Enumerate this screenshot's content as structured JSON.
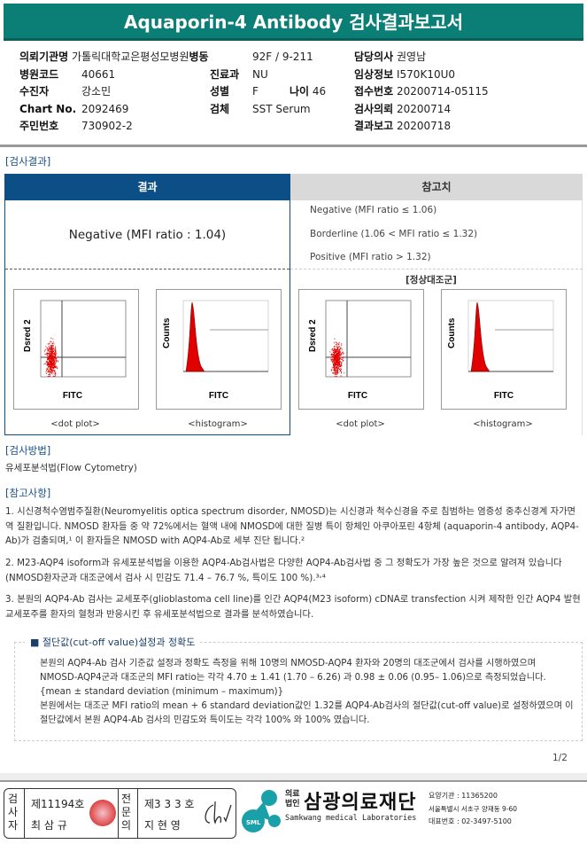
{
  "title": "Aquaporin-4 Antibody 검사결과보고서",
  "info": {
    "institution_label": "의뢰기관명",
    "institution": "가톨릭대학교은평성모병원",
    "ward_label": "병동",
    "ward": "92F / 9-211",
    "doctor_label": "담당의사",
    "doctor": "권영남",
    "code_label": "병원코드",
    "code": "40661",
    "dept_label": "진료과",
    "dept": "NU",
    "clinical_label": "임상정보",
    "clinical": "I570K10U0",
    "patient_label": "수진자",
    "patient": "강소민",
    "sex_label": "성별",
    "sex": "F",
    "age_label": "나이",
    "age": "46",
    "receipt_label": "접수번호",
    "receipt": "20200714-05115",
    "chart_label": "Chart No.",
    "chart": "2092469",
    "specimen_label": "검체",
    "specimen": "SST Serum",
    "request_label": "검사의뢰",
    "request": "20200714",
    "id_label": "주민번호",
    "id": "730902-2",
    "report_label": "결과보고",
    "report": "20200718"
  },
  "results": {
    "section": "[검사결과]",
    "result_header": "결과",
    "ref_header": "참고치",
    "result": "Negative (MFI ratio : 1.04)",
    "refs": [
      "Negative (MFI ratio ≤ 1.06)",
      "Borderline (1.06 < MFI ratio ≤ 1.32)",
      "Positive (MFI ratio > 1.32)"
    ],
    "control_label": "[정상대조군]",
    "dot_caption": "<dot plot>",
    "hist_caption": "<histogram>",
    "dot_ylabel": "Dsred 2",
    "hist_ylabel": "Counts",
    "xlabel": "FITC",
    "plot_color": "#e00000"
  },
  "method": {
    "section": "[검사방법]",
    "text": "유세포분석법(Flow Cytometry)"
  },
  "notes": {
    "section": "[참고사항]",
    "p1": "1. 시신경척수염범주질환(Neuromyelitis optica spectrum disorder, NMOSD)는 시신경과 척수신경을 주로 침범하는 염증성 중추신경계 자가면역 질환입니다. NMOSD 환자들 중 약 72%에서는 혈액 내에 NMOSD에 대한 질병 특이 항체인 아쿠아포린 4항체 (aquaporin-4 antibody, AQP4-Ab)가 검출되며,¹ 이 환자들은 NMOSD with AQP4-Ab로 세부 진단 됩니다.²",
    "p2": "2. M23-AQP4 isoform과 유세포분석법을 이용한 AQP4-Ab검사법은 다양한 AQP4-Ab검사법 중 그 정확도가 가장 높은 것으로 알려져 있습니다(NMOSD환자군과 대조군에서 검사 시 민감도 71.4 – 76.7 %, 특이도 100 %).³˒⁴",
    "p3": "3. 본원의 AQP4-Ab 검사는 교세포주(glioblastoma cell line)를 인간 AQP4(M23 isoform) cDNA로 transfection 시켜 제작한 인간 AQP4 발현 교세포주를 환자의 혈청과 반응시킨 후 유세포분석법으로 결과를 분석하였습니다."
  },
  "cutoff": {
    "heading": "■ 절단값(cut-off value)설정과 정확도",
    "l1": "본원의 AQP4-Ab 검사 기준값 설정과 정확도 측정을 위해 10명의 NMOSD-AQP4 환자와 20명의 대조군에서 검사를 시행하였으며  NMOSD-AQP4군과  대조군의 MFI ratio는 각각 4.70 ± 1.41 (1.70 – 6.26) 과 0.98 ± 0.06 (0.95– 1.06)으로 측정되었습니다. {mean ± standard deviation (minimum – maximum)}",
    "l2": "본원에서는 대조군 MFI ratio의 mean + 6 standard deviation값인 1.32를 AQP4-Ab검사의 절단값(cut-off value)로 설정하였으며 이 절단값에서 본원 AQP4-Ab 검사의 민감도와 특이도는 각각 100% 와 100% 였습니다."
  },
  "page": "1/2",
  "footer": {
    "tester_label": "검사자",
    "tester_no": "제11194호",
    "tester_name": "최 삼 규",
    "doctor_label": "전문의",
    "doctor_no": "제3 3 3 호",
    "doctor_name": "지 현 영",
    "org_prefix": "의료법인",
    "org_name": "삼광의료재단",
    "org_en": "Samkwang medical Laboratories",
    "logo_text": "SML",
    "code": "요양기관 : 11365200",
    "address": "서울특별시 서초구 양재동 9-60",
    "phone": "대표번호 : 02-3497-5100",
    "brand_color": "#1aa0a8"
  }
}
